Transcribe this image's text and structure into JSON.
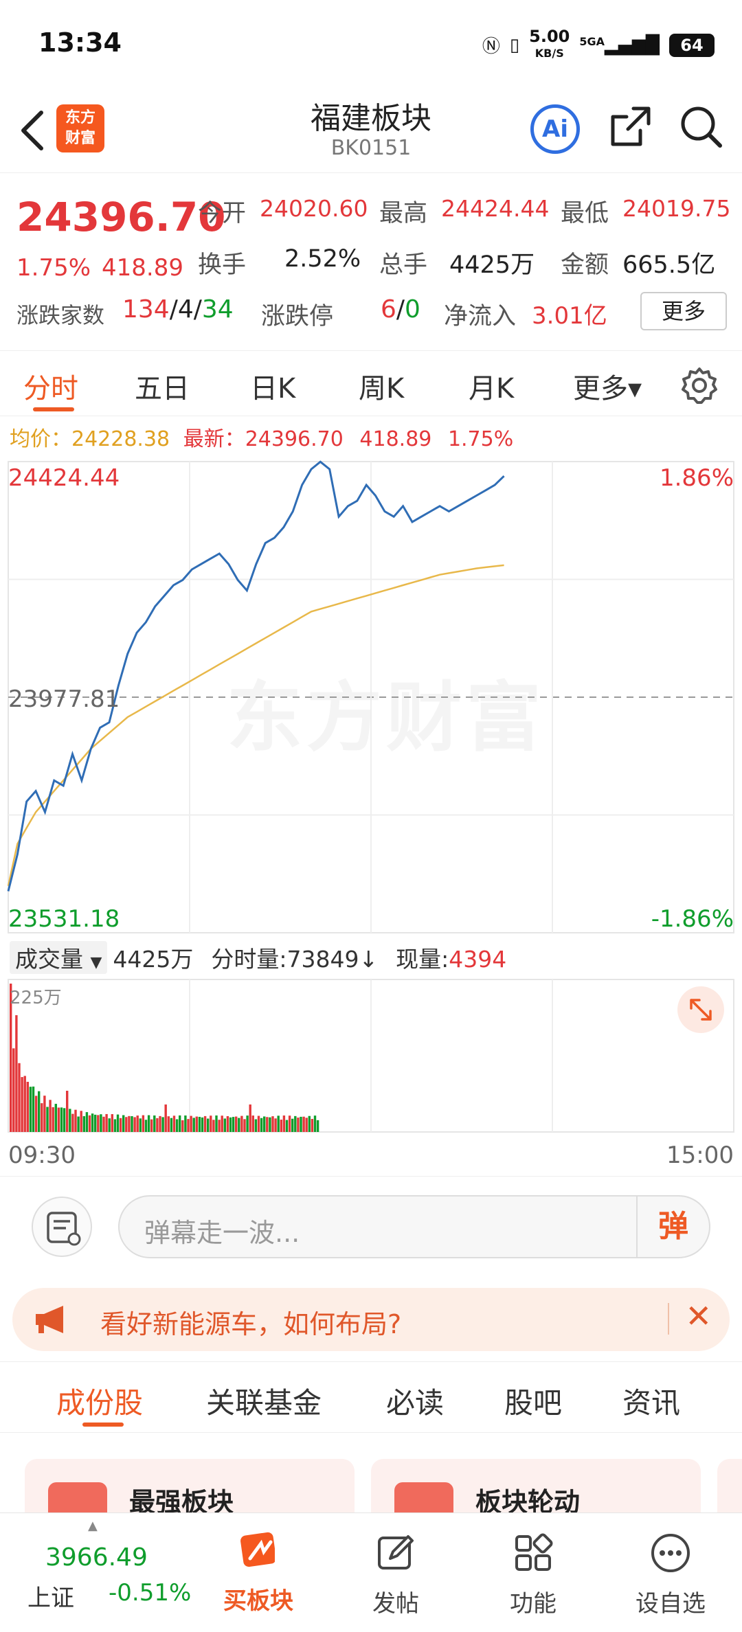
{
  "status_bar": {
    "time": "13:34",
    "network_speed": "5.00",
    "network_unit": "KB/S",
    "signal": "5GA",
    "battery": "64"
  },
  "header": {
    "logo_line1": "东方",
    "logo_line2": "财富",
    "title": "福建板块",
    "code": "BK0151",
    "ai_label": "Ai"
  },
  "quote": {
    "price": "24396.70",
    "change_pct": "1.75%",
    "change": "418.89",
    "open_label": "今开",
    "open": "24020.60",
    "high_label": "最高",
    "high": "24424.44",
    "low_label": "最低",
    "low": "24019.75",
    "turnover_label": "换手",
    "turnover": "2.52%",
    "volume_label": "总手",
    "volume": "4425万",
    "amount_label": "金额",
    "amount": "665.5亿",
    "updown_label": "涨跌家数",
    "up": "134",
    "flat": "4",
    "down": "34",
    "slash": "/",
    "limit_label": "涨跌停",
    "limit_up": "6",
    "limit_down": "0",
    "netflow_label": "净流入",
    "netflow": "3.01亿",
    "more_button": "更多"
  },
  "chart_tabs": [
    {
      "label": "分时",
      "active": true
    },
    {
      "label": "五日"
    },
    {
      "label": "日K"
    },
    {
      "label": "周K"
    },
    {
      "label": "月K"
    },
    {
      "label": "更多▾"
    }
  ],
  "legend": {
    "avg_label": "均价：",
    "avg": "24228.38",
    "latest_label": "最新：",
    "latest": "24396.70",
    "change": "418.89",
    "change_pct": "1.75%"
  },
  "chart_data": {
    "type": "line",
    "y_max_label": "24424.44",
    "y_max_pct": "1.86%",
    "y_mid_label": "23977.81",
    "y_min_label": "23531.18",
    "y_min_pct": "-1.86%",
    "ylim": [
      23531.18,
      24424.44
    ],
    "x_start": "09:30",
    "x_end": "15:00",
    "watermark": "东方财富",
    "series": [
      {
        "name": "price",
        "values": [
          23610,
          23680,
          23780,
          23800,
          23760,
          23820,
          23810,
          23870,
          23820,
          23880,
          23920,
          23930,
          24000,
          24060,
          24100,
          24120,
          24150,
          24170,
          24190,
          24200,
          24220,
          24230,
          24240,
          24250,
          24230,
          24200,
          24180,
          24230,
          24270,
          24280,
          24300,
          24330,
          24380,
          24410,
          24424,
          24410,
          24320,
          24340,
          24350,
          24380,
          24360,
          24330,
          24320,
          24340,
          24310,
          24320,
          24330,
          24340,
          24330,
          24340,
          24350,
          24360,
          24370,
          24380,
          24397
        ]
      },
      {
        "name": "average",
        "values": [
          23620,
          23700,
          23730,
          23760,
          23780,
          23800,
          23820,
          23840,
          23860,
          23880,
          23895,
          23910,
          23925,
          23940,
          23950,
          23960,
          23970,
          23980,
          23990,
          24000,
          24010,
          24020,
          24030,
          24040,
          24050,
          24060,
          24070,
          24080,
          24090,
          24100,
          24110,
          24120,
          24130,
          24140,
          24145,
          24150,
          24155,
          24160,
          24165,
          24170,
          24175,
          24180,
          24185,
          24190,
          24195,
          24200,
          24205,
          24210,
          24213,
          24216,
          24219,
          24222,
          24224,
          24226,
          24228
        ]
      }
    ]
  },
  "volume": {
    "selector": "成交量",
    "total": "4425万",
    "tick_label": "分时量:",
    "tick": "73849↓",
    "now_label": "现量:",
    "now": "4394",
    "scale_label": "225万"
  },
  "danmaku": {
    "placeholder": "弹幕走一波...",
    "button": "弹"
  },
  "banner": {
    "text": "看好新能源车，如何布局?"
  },
  "sub_tabs": [
    {
      "label": "成份股",
      "active": true
    },
    {
      "label": "关联基金"
    },
    {
      "label": "必读"
    },
    {
      "label": "股吧"
    },
    {
      "label": "资讯"
    }
  ],
  "cards": [
    {
      "title": "最强板块"
    },
    {
      "title": "板块轮动"
    }
  ],
  "bottom_nav": {
    "index_value": "3966.49",
    "index_name": "上证",
    "index_change": "-0.51%",
    "items": [
      "买板块",
      "发帖",
      "功能",
      "设自选"
    ]
  },
  "colors": {
    "accent": "#ee5a24",
    "up": "#e3373a",
    "down": "#0f9d2c",
    "price_line": "#2f6db5",
    "avg_line": "#e8b84a"
  }
}
